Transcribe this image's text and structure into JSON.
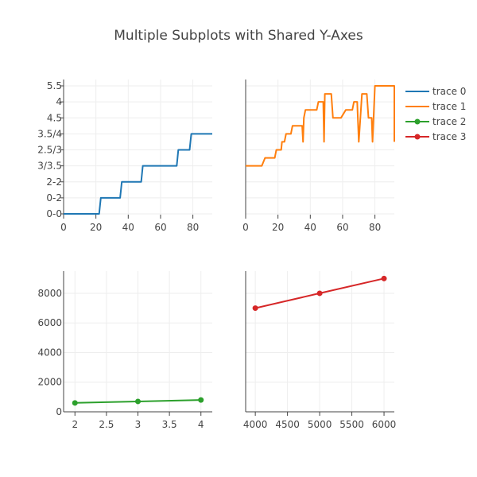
{
  "chart_data": {
    "type": "line",
    "title": "Multiple Subplots with Shared Y-Axes",
    "legend": {
      "placement": "top-right",
      "items": [
        {
          "name": "trace 0",
          "color": "#1f77b4",
          "markers": false
        },
        {
          "name": "trace 1",
          "color": "#ff7f0e",
          "markers": false
        },
        {
          "name": "trace 2",
          "color": "#2ca02c",
          "markers": true
        },
        {
          "name": "trace 3",
          "color": "#d62728",
          "markers": true
        }
      ]
    },
    "shared_y_categories": [
      "0-0",
      "0-2",
      "2-2",
      "3/3.5",
      "2.5/3",
      "3.5/4",
      "4.5",
      "4",
      "5.5"
    ],
    "subplots": [
      {
        "id": "top-left",
        "series": "trace 0",
        "color": "#1f77b4",
        "mode": "lines",
        "xlim": [
          0,
          92
        ],
        "xticks": [
          0,
          20,
          40,
          60,
          80
        ],
        "yaxis": "categorical",
        "points": [
          [
            0,
            0
          ],
          [
            22,
            0
          ],
          [
            23,
            1
          ],
          [
            35,
            1
          ],
          [
            36,
            2
          ],
          [
            48,
            2
          ],
          [
            49,
            3
          ],
          [
            70,
            3
          ],
          [
            71,
            4
          ],
          [
            78,
            4
          ],
          [
            79,
            5
          ],
          [
            92,
            5
          ]
        ]
      },
      {
        "id": "top-right",
        "series": "trace 1",
        "color": "#ff7f0e",
        "mode": "lines",
        "xlim": [
          0,
          92
        ],
        "xticks": [
          0,
          20,
          40,
          60,
          80
        ],
        "yaxis": "categorical",
        "points": [
          [
            0,
            3
          ],
          [
            10,
            3
          ],
          [
            12,
            3.5
          ],
          [
            18,
            3.5
          ],
          [
            19,
            4
          ],
          [
            22,
            4
          ],
          [
            22.5,
            4.5
          ],
          [
            24,
            4.5
          ],
          [
            25,
            5
          ],
          [
            28,
            5
          ],
          [
            29,
            5.5
          ],
          [
            35,
            5.5
          ],
          [
            35.5,
            4.5
          ],
          [
            36,
            6
          ],
          [
            37,
            6.5
          ],
          [
            44,
            6.5
          ],
          [
            45,
            7
          ],
          [
            48,
            7
          ],
          [
            48.5,
            4.5
          ],
          [
            49,
            7.5
          ],
          [
            53,
            7.5
          ],
          [
            54,
            6
          ],
          [
            59,
            6
          ],
          [
            62,
            6.5
          ],
          [
            66,
            6.5
          ],
          [
            67,
            7
          ],
          [
            69,
            7
          ],
          [
            70,
            4.5
          ],
          [
            72,
            7.5
          ],
          [
            75,
            7.5
          ],
          [
            76,
            6
          ],
          [
            78,
            6
          ],
          [
            78.5,
            4.5
          ],
          [
            80,
            8
          ],
          [
            92,
            8
          ],
          [
            92,
            4.5
          ]
        ]
      },
      {
        "id": "bottom-left",
        "series": "trace 2",
        "color": "#2ca02c",
        "mode": "lines+markers",
        "xlim": [
          1.82,
          4.18
        ],
        "xticks": [
          2,
          2.5,
          3,
          3.5,
          4
        ],
        "ylim": [
          0,
          9500
        ],
        "yticks": [
          0,
          2000,
          4000,
          6000,
          8000
        ],
        "x": [
          2,
          3,
          4
        ],
        "y": [
          600,
          700,
          800
        ]
      },
      {
        "id": "bottom-right",
        "series": "trace 3",
        "color": "#d62728",
        "mode": "lines+markers",
        "xlim": [
          3850,
          6160
        ],
        "xticks": [
          4000,
          4500,
          5000,
          5500,
          6000
        ],
        "ylim": [
          0,
          9500
        ],
        "x": [
          4000,
          5000,
          6000
        ],
        "y": [
          7000,
          8000,
          9000
        ]
      }
    ],
    "grid": true
  }
}
